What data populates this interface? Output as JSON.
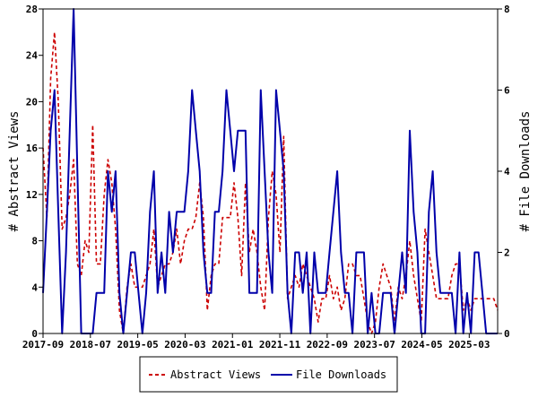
{
  "chart_data": {
    "type": "line",
    "title": "",
    "y_left": {
      "label": "# Abstract Views",
      "min": 0,
      "max": 28,
      "ticks": [
        0,
        4,
        8,
        12,
        16,
        20,
        24,
        28
      ]
    },
    "y_right": {
      "label": "# File Downloads",
      "min": 0,
      "max": 8,
      "ticks": [
        0,
        2,
        4,
        6,
        8
      ]
    },
    "x_axis": {
      "start": "2017-09",
      "end": "2025-09",
      "ticks": [
        "2017-09",
        "2018-07",
        "2019-05",
        "2020-03",
        "2021-01",
        "2021-11",
        "2022-09",
        "2023-07",
        "2024-05",
        "2025-03"
      ]
    },
    "grid": false,
    "legend_position": "bottom-center",
    "series": [
      {
        "name": "Abstract Views",
        "axis": "left",
        "color": "#cc0000",
        "line_style": "dashed",
        "values": [
          16,
          10,
          22,
          26,
          20,
          9,
          10,
          12,
          15,
          6,
          5,
          8,
          7,
          18,
          6,
          6,
          12,
          15,
          13,
          9,
          2,
          0,
          4,
          6,
          4,
          4,
          4,
          5,
          6,
          9,
          4,
          5,
          6,
          6,
          7,
          9,
          6,
          8,
          9,
          9,
          10,
          13,
          10,
          2,
          5,
          6,
          6,
          10,
          10,
          10,
          13,
          10,
          5,
          13,
          7,
          9,
          7,
          4,
          2,
          10,
          14,
          12,
          7,
          17,
          3,
          4,
          5,
          4,
          6,
          5,
          4,
          3,
          1,
          3,
          3,
          5,
          3,
          4,
          2,
          3,
          6,
          6,
          5,
          5,
          3,
          1,
          0,
          1,
          4,
          6,
          5,
          4,
          1,
          4,
          3,
          5,
          8,
          5,
          3,
          1,
          9,
          7,
          5,
          3,
          3,
          3,
          3,
          5,
          6,
          6,
          2,
          3,
          2,
          3,
          3,
          3,
          3,
          3,
          3,
          2
        ]
      },
      {
        "name": "File Downloads",
        "axis": "right",
        "color": "#0000aa",
        "line_style": "solid",
        "values": [
          1,
          3,
          5,
          6,
          3,
          0,
          2,
          5,
          8,
          4,
          0,
          0,
          0,
          0,
          1,
          1,
          1,
          4,
          3,
          4,
          1,
          0,
          1,
          2,
          2,
          1,
          0,
          1,
          3,
          4,
          1,
          2,
          1,
          3,
          2,
          3,
          3,
          3,
          4,
          6,
          5,
          4,
          2,
          1,
          1,
          3,
          3,
          4,
          6,
          5,
          4,
          5,
          5,
          5,
          1,
          1,
          1,
          6,
          4,
          2,
          1,
          6,
          5,
          4,
          1,
          0,
          2,
          2,
          1,
          2,
          0,
          2,
          1,
          1,
          1,
          2,
          3,
          4,
          2,
          1,
          1,
          0,
          2,
          2,
          2,
          0,
          1,
          0,
          0,
          1,
          1,
          1,
          0,
          1,
          2,
          1,
          5,
          3,
          2,
          0,
          0,
          3,
          4,
          2,
          1,
          1,
          1,
          1,
          0,
          2,
          0,
          1,
          0,
          2,
          2,
          1,
          0,
          0,
          0,
          0
        ]
      }
    ]
  }
}
